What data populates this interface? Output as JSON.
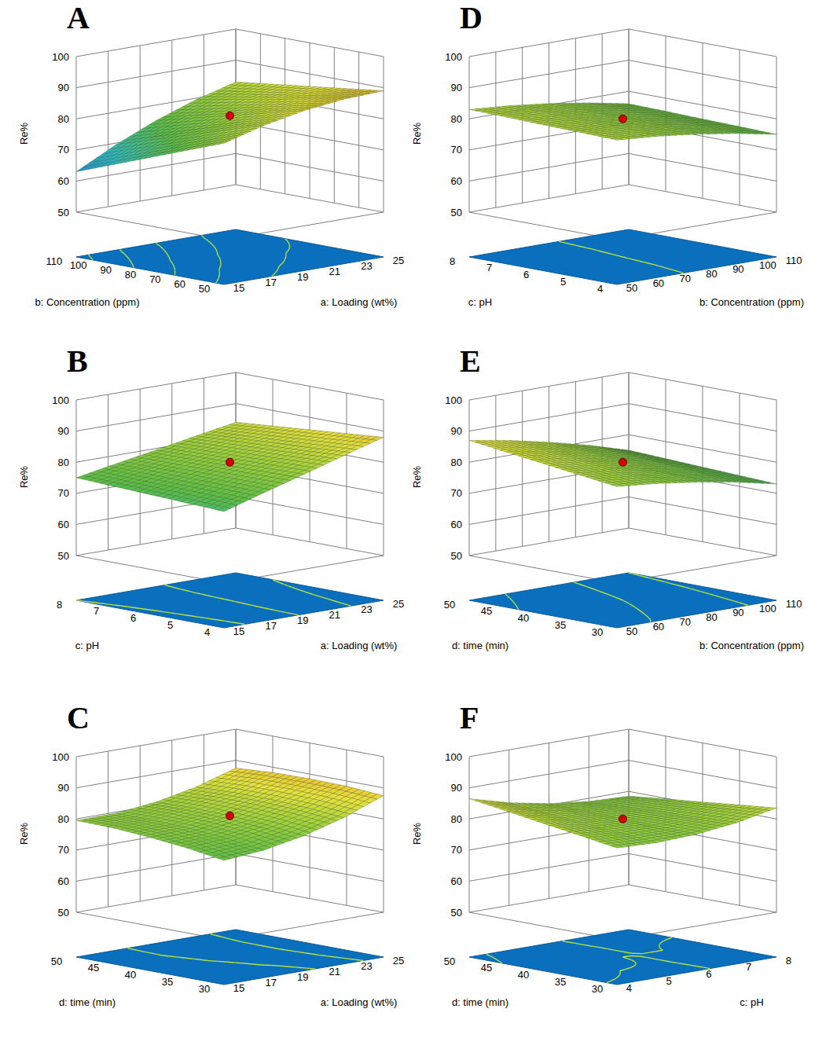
{
  "chart_data": [
    {
      "type": "surface",
      "title": "A",
      "xlabel": "a: Loading (wt%)",
      "ylabel": "b: Concentration (ppm)",
      "zlabel": "Re%",
      "xlim": [
        15,
        25
      ],
      "xticks": [
        15,
        17,
        19,
        21,
        23,
        25
      ],
      "ylim": [
        50,
        110
      ],
      "yticks": [
        50,
        60,
        70,
        80,
        90,
        100,
        110
      ],
      "zlim": [
        50,
        100
      ],
      "zticks": [
        50,
        60,
        70,
        80,
        90,
        100
      ],
      "x": [
        15,
        17.5,
        20,
        22.5,
        25
      ],
      "y": [
        50,
        65,
        80,
        95,
        110
      ],
      "z": [
        [
          81,
          84.5,
          87,
          88.5,
          89
        ],
        [
          76.5,
          80.8,
          84,
          86.3,
          87.5
        ],
        [
          72,
          77,
          81,
          84,
          86
        ],
        [
          67.5,
          73.3,
          78,
          81.8,
          84.5
        ],
        [
          63,
          69.5,
          75,
          79.5,
          83
        ]
      ],
      "point": {
        "x": 20,
        "y": 80,
        "z": 81
      }
    },
    {
      "type": "surface",
      "title": "B",
      "xlabel": "a: Loading (wt%)",
      "ylabel": "c: pH",
      "zlabel": "Re%",
      "xlim": [
        15,
        25
      ],
      "xticks": [
        15,
        17,
        19,
        21,
        23,
        25
      ],
      "ylim": [
        4,
        8
      ],
      "yticks": [
        4,
        5,
        6,
        7,
        8
      ],
      "zlim": [
        50,
        100
      ],
      "zticks": [
        50,
        60,
        70,
        80,
        90,
        100
      ],
      "x": [
        15,
        17.5,
        20,
        22.5,
        25
      ],
      "y": [
        4,
        5,
        6,
        7,
        8
      ],
      "z": [
        [
          73,
          76.8,
          80.5,
          84.3,
          88
        ],
        [
          73.5,
          76.9,
          80.3,
          83.6,
          87
        ],
        [
          74,
          77,
          80,
          83,
          86
        ],
        [
          74.5,
          77.1,
          79.8,
          82.4,
          85
        ],
        [
          75,
          77.3,
          79.5,
          81.8,
          84
        ]
      ],
      "point": {
        "x": 20,
        "y": 6,
        "z": 80
      }
    },
    {
      "type": "surface",
      "title": "C",
      "xlabel": "a: Loading (wt%)",
      "ylabel": "d: time (min)",
      "zlabel": "Re%",
      "xlim": [
        15,
        25
      ],
      "xticks": [
        15,
        17,
        19,
        21,
        23,
        25
      ],
      "ylim": [
        30,
        50
      ],
      "yticks": [
        30,
        35,
        40,
        45,
        50
      ],
      "zlim": [
        50,
        100
      ],
      "zticks": [
        50,
        60,
        70,
        80,
        90,
        100
      ],
      "x": [
        15,
        17.5,
        20,
        22.5,
        25
      ],
      "y": [
        30,
        35,
        40,
        45,
        50
      ],
      "z": [
        [
          75.5,
          76.6,
          79,
          82.6,
          87.5
        ],
        [
          77.3,
          78.1,
          80.3,
          83.6,
          88.3
        ],
        [
          78.5,
          79.1,
          81,
          84.1,
          88.5
        ],
        [
          79.3,
          79.6,
          81.3,
          84.1,
          88.3
        ],
        [
          79.5,
          79.6,
          81,
          83.6,
          87.5
        ]
      ],
      "point": {
        "x": 20,
        "y": 40,
        "z": 81
      }
    },
    {
      "type": "surface",
      "title": "D",
      "xlabel": "b: Concentration (ppm)",
      "ylabel": "c: pH",
      "zlabel": "Re%",
      "xlim": [
        50,
        110
      ],
      "xticks": [
        50,
        60,
        70,
        80,
        90,
        100,
        110
      ],
      "ylim": [
        4,
        8
      ],
      "yticks": [
        4,
        5,
        6,
        7,
        8
      ],
      "zlim": [
        50,
        100
      ],
      "zticks": [
        50,
        60,
        70,
        80,
        90,
        100
      ],
      "x": [
        50,
        65,
        80,
        95,
        110
      ],
      "y": [
        4,
        5,
        6,
        7,
        8
      ],
      "z": [
        [
          82,
          81,
          79.5,
          77.5,
          75
        ],
        [
          82.3,
          81.3,
          79.8,
          77.8,
          75.3
        ],
        [
          82.5,
          81.5,
          80,
          78,
          75.5
        ],
        [
          82.8,
          81.8,
          80.3,
          78.3,
          75.8
        ],
        [
          83,
          82,
          80.5,
          78.5,
          76
        ]
      ],
      "point": {
        "x": 80,
        "y": 6,
        "z": 80
      }
    },
    {
      "type": "surface",
      "title": "E",
      "xlabel": "b: Concentration (ppm)",
      "ylabel": "d: time (min)",
      "zlabel": "Re%",
      "xlim": [
        50,
        110
      ],
      "xticks": [
        50,
        60,
        70,
        80,
        90,
        100,
        110
      ],
      "ylim": [
        30,
        50
      ],
      "yticks": [
        30,
        35,
        40,
        45,
        50
      ],
      "zlim": [
        50,
        100
      ],
      "zticks": [
        50,
        60,
        70,
        80,
        90,
        100
      ],
      "x": [
        50,
        65,
        80,
        95,
        110
      ],
      "y": [
        30,
        35,
        40,
        45,
        50
      ],
      "z": [
        [
          81,
          79.8,
          78,
          75.8,
          73
        ],
        [
          82.5,
          81,
          79,
          76.5,
          73.5
        ],
        [
          84,
          82.3,
          80,
          77.3,
          74
        ],
        [
          85.5,
          83.5,
          81,
          78,
          74.5
        ],
        [
          87,
          84.8,
          82,
          78.8,
          75
        ]
      ],
      "point": {
        "x": 80,
        "y": 40,
        "z": 80
      }
    },
    {
      "type": "surface",
      "title": "F",
      "xlabel": "c: pH",
      "ylabel": "d: time (min)",
      "zlabel": "Re%",
      "xlim": [
        4,
        8
      ],
      "xticks": [
        4,
        5,
        6,
        7,
        8
      ],
      "ylim": [
        30,
        50
      ],
      "yticks": [
        30,
        35,
        40,
        45,
        50
      ],
      "zlim": [
        50,
        100
      ],
      "zticks": [
        50,
        60,
        70,
        80,
        90,
        100
      ],
      "x": [
        4,
        5,
        6,
        7,
        8
      ],
      "y": [
        30,
        35,
        40,
        45,
        50
      ],
      "z": [
        [
          79.5,
          79,
          79.5,
          81,
          83.5
        ],
        [
          81.3,
          80,
          79.8,
          80.5,
          82.3
        ],
        [
          83,
          81,
          80,
          80,
          81
        ],
        [
          84.8,
          82,
          80.3,
          79.5,
          79.8
        ],
        [
          86.5,
          83,
          80.5,
          79,
          78.5
        ]
      ],
      "point": {
        "x": 6,
        "y": 40,
        "z": 80
      }
    }
  ]
}
